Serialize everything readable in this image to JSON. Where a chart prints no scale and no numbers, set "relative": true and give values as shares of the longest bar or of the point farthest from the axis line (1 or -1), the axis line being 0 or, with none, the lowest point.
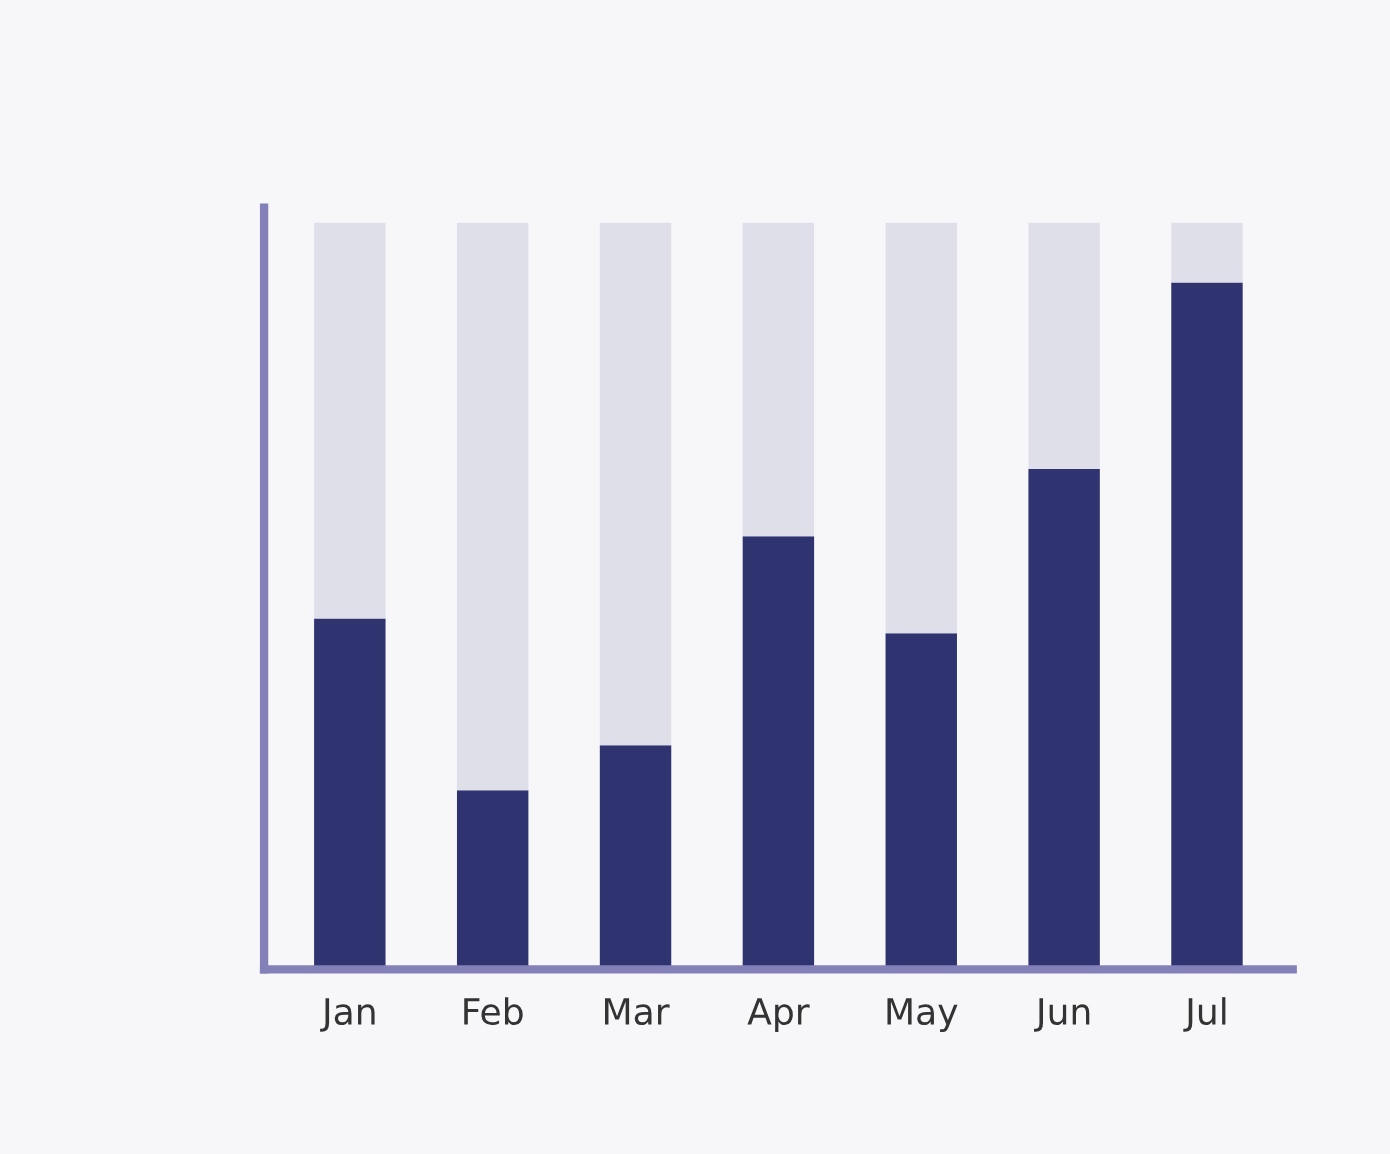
{
  "chart_data": {
    "type": "bar",
    "relative": true,
    "stacked": true,
    "tick_labels": "x",
    "grid": false,
    "legend": false,
    "categories": [
      "Jan",
      "Feb",
      "Mar",
      "Apr",
      "May",
      "Jun",
      "Jul"
    ],
    "series": [
      {
        "color": "#2f3470",
        "values": [
          0.47,
          0.24,
          0.3,
          0.58,
          0.45,
          0.67,
          0.92
        ]
      },
      {
        "color": "#dfdfea",
        "values": [
          0.53,
          0.76,
          0.7,
          0.42,
          0.55,
          0.33,
          0.08
        ]
      }
    ]
  }
}
